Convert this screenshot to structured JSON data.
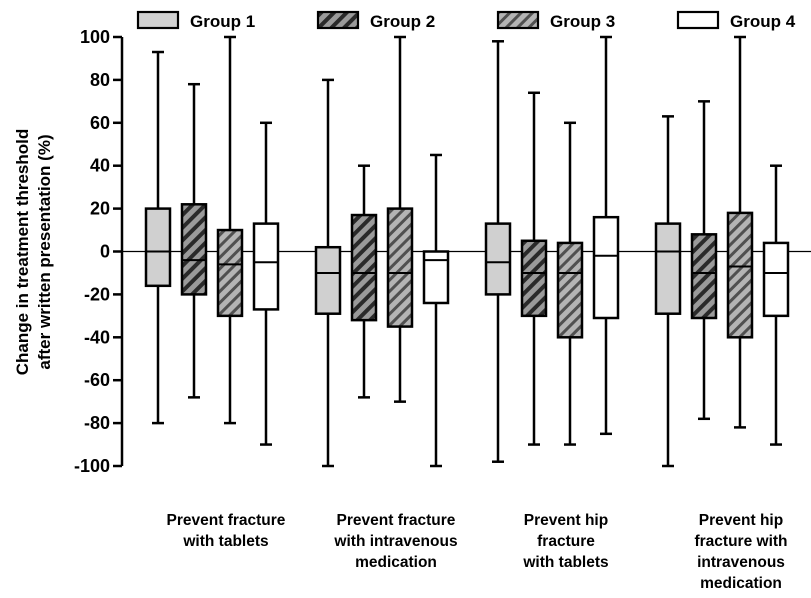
{
  "chart_data": {
    "type": "box",
    "ylabel": "Change in treatment threshold\nafter written presentation (%)",
    "ylim": [
      -100,
      100
    ],
    "yticks": [
      -100,
      -80,
      -60,
      -40,
      -20,
      0,
      20,
      40,
      60,
      80,
      100
    ],
    "categories": [
      "Prevent fracture\nwith tablets",
      "Prevent fracture\nwith intravenous\nmedication",
      "Prevent hip\nfracture\nwith tablets",
      "Prevent hip\nfracture with\nintravenous\nmedication"
    ],
    "legend_position": "top",
    "series": [
      {
        "name": "Group 1",
        "fill": "light-gray",
        "color": "#d0d0d0",
        "boxes": [
          {
            "min": -80,
            "q1": -16,
            "median": 0,
            "q3": 20,
            "max": 93
          },
          {
            "min": -100,
            "q1": -29,
            "median": -10,
            "q3": 2,
            "max": 80
          },
          {
            "min": -98,
            "q1": -20,
            "median": -5,
            "q3": 13,
            "max": 98
          },
          {
            "min": -100,
            "q1": -29,
            "median": 0,
            "q3": 13,
            "max": 63
          }
        ]
      },
      {
        "name": "Group 2",
        "fill": "dark-hatch",
        "color": "#7a7a7a",
        "boxes": [
          {
            "min": -68,
            "q1": -20,
            "median": -4,
            "q3": 22,
            "max": 78
          },
          {
            "min": -68,
            "q1": -32,
            "median": -10,
            "q3": 17,
            "max": 40
          },
          {
            "min": -90,
            "q1": -30,
            "median": -10,
            "q3": 5,
            "max": 74
          },
          {
            "min": -78,
            "q1": -31,
            "median": -10,
            "q3": 8,
            "max": 70
          }
        ]
      },
      {
        "name": "Group 3",
        "fill": "light-hatch",
        "color": "#8c8c8c",
        "boxes": [
          {
            "min": -80,
            "q1": -30,
            "median": -6,
            "q3": 10,
            "max": 100
          },
          {
            "min": -70,
            "q1": -35,
            "median": -10,
            "q3": 20,
            "max": 100
          },
          {
            "min": -90,
            "q1": -40,
            "median": -10,
            "q3": 4,
            "max": 60
          },
          {
            "min": -82,
            "q1": -40,
            "median": -7,
            "q3": 18,
            "max": 100
          }
        ]
      },
      {
        "name": "Group 4",
        "fill": "white",
        "color": "#ffffff",
        "boxes": [
          {
            "min": -90,
            "q1": -27,
            "median": -5,
            "q3": 13,
            "max": 60
          },
          {
            "min": -100,
            "q1": -24,
            "median": -4,
            "q3": 0,
            "max": 45
          },
          {
            "min": -85,
            "q1": -31,
            "median": -2,
            "q3": 16,
            "max": 100
          },
          {
            "min": -90,
            "q1": -30,
            "median": -10,
            "q3": 4,
            "max": 40
          }
        ]
      }
    ]
  }
}
